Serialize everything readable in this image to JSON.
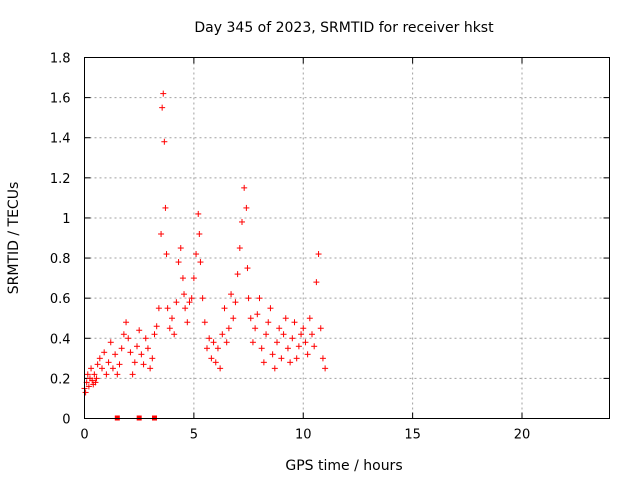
{
  "chart_data": {
    "type": "scatter",
    "title": "Day 345 of 2023, SRMTID for receiver hkst",
    "xlabel": "GPS time / hours",
    "ylabel": "SRMTID / TECUs",
    "xlim": [
      0,
      24
    ],
    "ylim": [
      0,
      1.8
    ],
    "x_ticks": [
      "0",
      "5",
      "10",
      "15",
      "20"
    ],
    "y_ticks": [
      "0",
      "0.2",
      "0.4",
      "0.6",
      "0.8",
      "1",
      "1.2",
      "1.4",
      "1.6",
      "1.8"
    ],
    "grid": true,
    "marker": "+",
    "color": "#ff0000",
    "series": [
      {
        "x": [
          0.0,
          0.05,
          0.1,
          0.15,
          0.2,
          0.25,
          0.3,
          0.35,
          0.4,
          0.45,
          0.5,
          0.55,
          0.6,
          0.7,
          0.8,
          0.9,
          1.0,
          1.1,
          1.2,
          1.3,
          1.4,
          1.5,
          1.6,
          1.7,
          1.8,
          1.9,
          2.0,
          2.1,
          2.2,
          2.3,
          2.4,
          2.5,
          2.6,
          2.7,
          2.8,
          2.9,
          3.0,
          3.1,
          3.2,
          3.3,
          3.4,
          3.5,
          3.55,
          3.6,
          3.65,
          3.7,
          3.75,
          3.8,
          3.9,
          4.0,
          4.1,
          4.2,
          4.3,
          4.4,
          4.5,
          4.55,
          4.6,
          4.7,
          4.8,
          4.9,
          5.0,
          5.1,
          5.2,
          5.25,
          5.3,
          5.4,
          5.5,
          5.6,
          5.7,
          5.8,
          5.9,
          6.0,
          6.1,
          6.2,
          6.3,
          6.4,
          6.5,
          6.6,
          6.7,
          6.8,
          6.9,
          7.0,
          7.1,
          7.2,
          7.3,
          7.4,
          7.45,
          7.5,
          7.6,
          7.7,
          7.8,
          7.9,
          8.0,
          8.1,
          8.2,
          8.3,
          8.4,
          8.5,
          8.6,
          8.7,
          8.8,
          8.9,
          9.0,
          9.1,
          9.2,
          9.3,
          9.4,
          9.5,
          9.6,
          9.7,
          9.8,
          9.9,
          10.0,
          10.1,
          10.2,
          10.3,
          10.4,
          10.5,
          10.6,
          10.7,
          10.8,
          10.9,
          11.0
        ],
        "y": [
          0.15,
          0.13,
          0.18,
          0.22,
          0.16,
          0.2,
          0.25,
          0.19,
          0.17,
          0.22,
          0.18,
          0.2,
          0.27,
          0.3,
          0.25,
          0.33,
          0.22,
          0.28,
          0.38,
          0.25,
          0.32,
          0.22,
          0.27,
          0.35,
          0.42,
          0.48,
          0.4,
          0.33,
          0.22,
          0.28,
          0.36,
          0.44,
          0.32,
          0.27,
          0.4,
          0.35,
          0.25,
          0.3,
          0.42,
          0.46,
          0.55,
          0.92,
          1.55,
          1.62,
          1.38,
          1.05,
          0.82,
          0.55,
          0.45,
          0.5,
          0.42,
          0.58,
          0.78,
          0.85,
          0.7,
          0.62,
          0.55,
          0.48,
          0.58,
          0.6,
          0.7,
          0.82,
          1.02,
          0.92,
          0.78,
          0.6,
          0.48,
          0.35,
          0.4,
          0.3,
          0.38,
          0.28,
          0.35,
          0.25,
          0.42,
          0.55,
          0.38,
          0.45,
          0.62,
          0.5,
          0.58,
          0.72,
          0.85,
          0.98,
          1.15,
          1.05,
          0.75,
          0.6,
          0.5,
          0.38,
          0.45,
          0.52,
          0.6,
          0.35,
          0.28,
          0.42,
          0.48,
          0.55,
          0.32,
          0.25,
          0.38,
          0.45,
          0.3,
          0.42,
          0.5,
          0.35,
          0.28,
          0.4,
          0.48,
          0.3,
          0.36,
          0.42,
          0.45,
          0.38,
          0.32,
          0.5,
          0.42,
          0.36,
          0.68,
          0.82,
          0.45,
          0.3,
          0.25
        ],
        "zero_points_x": [
          1.5,
          2.5,
          3.2
        ]
      }
    ]
  }
}
